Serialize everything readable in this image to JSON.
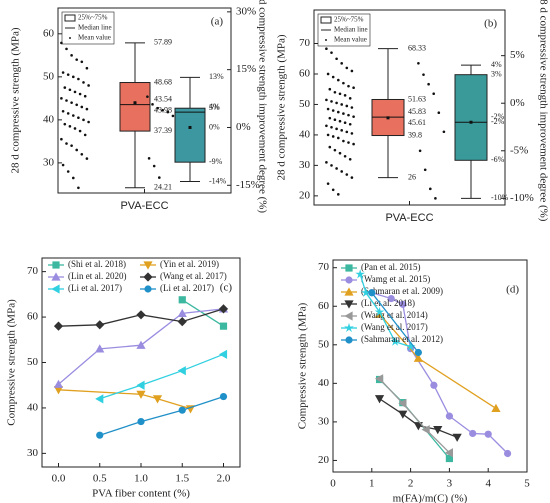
{
  "chart_data": [
    {
      "type": "box",
      "panel": "(a)",
      "ylabel": "28 d compressive strength (MPa)",
      "y2label": "28d compressive strength improvement degree (%)",
      "categories": [
        "PVA-ECC"
      ],
      "legend": [
        "25%~75%",
        "Median line",
        "Mean value"
      ],
      "ylim": [
        23,
        66
      ],
      "yticks": [
        30,
        40,
        50,
        60
      ],
      "y2lim": [
        -17,
        31
      ],
      "y2ticks": [
        {
          "value": -15,
          "label": "-15%"
        },
        {
          "value": 0,
          "label": "0%"
        },
        {
          "value": 15,
          "label": "15%"
        },
        {
          "value": 30,
          "label": "30%"
        }
      ],
      "boxes": [
        {
          "color": "#e8705f",
          "values": [
            57.89,
            48.68,
            43.54,
            43.98,
            37.39,
            24.21
          ],
          "points": [
            57.89,
            56.5,
            55,
            54,
            53.5,
            52,
            51,
            50.5,
            50,
            49.5,
            48.7,
            48,
            47.5,
            47,
            46.5,
            46,
            45.5,
            45,
            44.5,
            44,
            43.5,
            43,
            42.5,
            42,
            41.5,
            41,
            40.5,
            40,
            39.5,
            39,
            38.5,
            38,
            37.4,
            36.5,
            35.5,
            34.5,
            34,
            33,
            32,
            31,
            29.5,
            28,
            26.5,
            24.21
          ]
        },
        {
          "color": "#3d97a0",
          "axis": "y2",
          "values": [
            13,
            5,
            4,
            0,
            -9,
            -14
          ],
          "value_labels": [
            "13%",
            "5%",
            "4%",
            "0%",
            "-9%",
            "-14%"
          ],
          "points": [
            8,
            6,
            5,
            4.5,
            4,
            3,
            -8,
            -10,
            -13
          ]
        }
      ]
    },
    {
      "type": "box",
      "panel": "(b)",
      "ylabel": "28 d compressive strength (MPa)",
      "y2label": "28 d compressive strength improvement degree (%)",
      "categories": [
        "PVA-ECC"
      ],
      "legend": [
        "25%~75%",
        "Median line",
        "Mean value"
      ],
      "ylim": [
        17,
        81
      ],
      "yticks": [
        20,
        30,
        40,
        50,
        60,
        70
      ],
      "y2lim": [
        -10.7,
        9.8
      ],
      "y2ticks": [
        {
          "value": -10,
          "label": "-10%"
        },
        {
          "value": -5,
          "label": "-5%"
        },
        {
          "value": 0,
          "label": "0%"
        },
        {
          "value": 5,
          "label": "5%"
        }
      ],
      "boxes": [
        {
          "color": "#e8705f",
          "values": [
            68.33,
            51.63,
            45.83,
            45.61,
            39.8,
            26.0
          ],
          "points": [
            68.3,
            67,
            65,
            63.5,
            62,
            61,
            60,
            59,
            58,
            57,
            56,
            55.5,
            55,
            54,
            53.5,
            53,
            52,
            51.5,
            51,
            50.5,
            50,
            49.5,
            49,
            48.5,
            48,
            47.5,
            47,
            46.5,
            46,
            45.5,
            45,
            44.5,
            44,
            43.5,
            43,
            42.5,
            42,
            41.5,
            41,
            40.5,
            40,
            39.5,
            39,
            38,
            37.5,
            37,
            36,
            35,
            34,
            33,
            32,
            31,
            30,
            29,
            28,
            27,
            26,
            24,
            22,
            20.5
          ]
        },
        {
          "color": "#3a9a9a",
          "axis": "y2",
          "values": [
            4,
            3,
            -2,
            -2,
            -6,
            -10
          ],
          "value_labels": [
            "4%",
            "3%",
            "-2%",
            "-2%",
            "-6%",
            "-10%"
          ],
          "points": [
            4.2,
            3,
            2,
            1,
            -1,
            -3,
            -5,
            -7,
            -9,
            -10
          ]
        }
      ]
    },
    {
      "type": "line",
      "panel": "(c)",
      "xlabel": "PVA fiber content (%)",
      "ylabel": "Compressive strength (MPa)",
      "xlim": [
        -0.2,
        2.2
      ],
      "xticks": [
        {
          "value": 0,
          "label": "0.0"
        },
        0.5,
        {
          "value": 1,
          "label": "1.0"
        },
        1.5,
        {
          "value": 2,
          "label": "2.0"
        }
      ],
      "ylim": [
        27,
        73
      ],
      "yticks": [
        30,
        40,
        50,
        60,
        70
      ],
      "series": [
        {
          "name": "(Shi et al. 2018)",
          "color": "#3cb8a0",
          "marker": "square",
          "x": [
            1.5,
            2.0
          ],
          "values": [
            63.8,
            58
          ]
        },
        {
          "name": "(Yin et al. 2019)",
          "color": "#e0a020",
          "marker": "down",
          "x": [
            0,
            1.0,
            1.2,
            1.6
          ],
          "values": [
            44,
            43,
            42,
            39.8
          ]
        },
        {
          "name": "(Lin et al. 2020)",
          "color": "#9a8de0",
          "marker": "up",
          "x": [
            0,
            0.5,
            1.0,
            1.5,
            2.0
          ],
          "values": [
            45.2,
            53,
            53.8,
            60.8,
            61.8
          ]
        },
        {
          "name": "(Wang et al. 2017)",
          "color": "#333333",
          "marker": "diamond",
          "x": [
            0,
            0.5,
            1.0,
            1.5,
            2.0
          ],
          "values": [
            58,
            58.3,
            60.5,
            59,
            61.8
          ]
        },
        {
          "name": "(Li et al. 2017)",
          "color": "#30d0e0",
          "marker": "left",
          "x": [
            0.5,
            1.0,
            1.5,
            2.0
          ],
          "values": [
            42,
            45,
            48.2,
            51.8
          ]
        },
        {
          "name": "(Li et al. 2017)",
          "color": "#2090c8",
          "marker": "circle",
          "x": [
            0.5,
            1.0,
            1.5,
            2.0
          ],
          "values": [
            34,
            37,
            39.5,
            42.5
          ]
        }
      ]
    },
    {
      "type": "line",
      "panel": "(d)",
      "xlabel": "m(FA)/m(C) (%)",
      "ylabel": "Compressive strength (MPa)",
      "xlim": [
        0,
        5
      ],
      "xticks": [
        0,
        1,
        2,
        3,
        4,
        5
      ],
      "ylim": [
        17,
        72
      ],
      "yticks": [
        20,
        30,
        40,
        50,
        60,
        70
      ],
      "series": [
        {
          "name": "(Pan et al. 2015)",
          "color": "#3cb8a0",
          "marker": "square",
          "x": [
            1.2,
            1.8,
            3.0
          ],
          "values": [
            41,
            35,
            20.5
          ]
        },
        {
          "name": "(Wamg et al. 2015)",
          "color": "#9a8de0",
          "marker": "circle",
          "x": [
            1.0,
            1.5,
            1.8,
            2.0,
            2.6,
            3.0,
            3.6,
            4.0,
            4.5
          ],
          "values": [
            63.5,
            62,
            60.5,
            49,
            39.5,
            31.5,
            27,
            26.8,
            21.8
          ]
        },
        {
          "name": "(Sahmaran et al. 2009)",
          "color": "#e0a020",
          "marker": "up",
          "x": [
            1.2,
            2.2,
            4.2
          ],
          "values": [
            58,
            46.5,
            33.5
          ]
        },
        {
          "name": "(Li et al. 2018)",
          "color": "#333333",
          "marker": "down",
          "x": [
            1.2,
            1.8,
            2.2,
            2.7,
            3.2
          ],
          "values": [
            36,
            32,
            29,
            28,
            26
          ]
        },
        {
          "name": "(Wang et al. 2014)",
          "color": "#999999",
          "marker": "left",
          "x": [
            1.2,
            1.8,
            2.4,
            3.0
          ],
          "values": [
            41.2,
            34.8,
            28,
            22
          ]
        },
        {
          "name": "(Wang et al. 2017)",
          "color": "#30d0e0",
          "marker": "star",
          "x": [
            0.7,
            0.85,
            1.2,
            1.6,
            2.0
          ],
          "values": [
            68.3,
            63.5,
            58.5,
            50.8,
            49.5
          ]
        },
        {
          "name": "(Sahmaran et al. 2012)",
          "color": "#2090c8",
          "marker": "circle",
          "x": [
            1.0,
            2.2
          ],
          "values": [
            63.5,
            48
          ]
        }
      ]
    }
  ]
}
